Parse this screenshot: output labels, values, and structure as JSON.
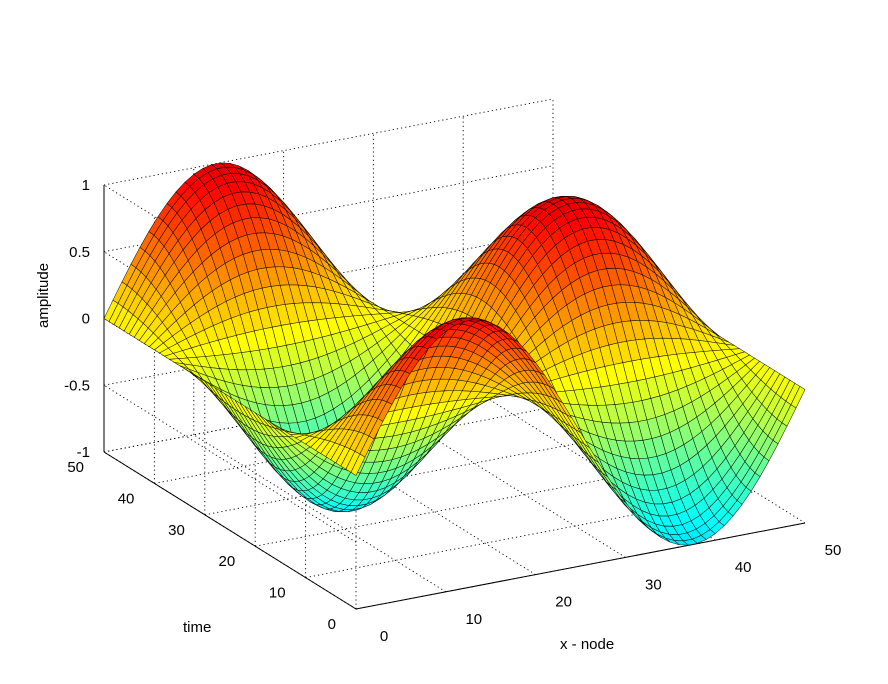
{
  "chart_data": {
    "type": "surface",
    "function": "amplitude = sin(pi*x/25) * cos(pi*t/25)",
    "x_grid": [
      0,
      1,
      2,
      3,
      4,
      5,
      6,
      7,
      8,
      9,
      10,
      11,
      12,
      13,
      14,
      15,
      16,
      17,
      18,
      19,
      20,
      21,
      22,
      23,
      24,
      25,
      26,
      27,
      28,
      29,
      30,
      31,
      32,
      33,
      34,
      35,
      36,
      37,
      38,
      39,
      40,
      41,
      42,
      43,
      44,
      45,
      46,
      47,
      48,
      49,
      50
    ],
    "t_grid": [
      0,
      1,
      2,
      3,
      4,
      5,
      6,
      7,
      8,
      9,
      10,
      11,
      12,
      13,
      14,
      15,
      16,
      17,
      18,
      19,
      20,
      21,
      22,
      23,
      24,
      25,
      26,
      27,
      28,
      29,
      30,
      31,
      32,
      33,
      34,
      35,
      36,
      37,
      38,
      39,
      40,
      41,
      42,
      43,
      44,
      45,
      46,
      47,
      48,
      49,
      50
    ],
    "sample_rows": {
      "t=0": {
        "x": [
          0,
          12.5,
          25,
          37.5,
          50
        ],
        "amplitude": [
          0,
          1,
          0,
          -1,
          0
        ]
      },
      "t=25": {
        "x": [
          0,
          12.5,
          25,
          37.5,
          50
        ],
        "amplitude": [
          0,
          -1,
          0,
          1,
          0
        ]
      },
      "t=50": {
        "x": [
          0,
          12.5,
          25,
          37.5,
          50
        ],
        "amplitude": [
          0,
          1,
          0,
          -1,
          0
        ]
      }
    },
    "xlabel": "x - node",
    "ylabel": "time",
    "zlabel": "amplitude",
    "xlim": [
      0,
      50
    ],
    "ylim": [
      0,
      50
    ],
    "zlim": [
      -1,
      1
    ],
    "xticks": [
      "0",
      "10",
      "20",
      "30",
      "40",
      "50"
    ],
    "yticks": [
      "0",
      "10",
      "20",
      "30",
      "40",
      "50"
    ],
    "zticks": [
      "-1",
      "-0.5",
      "0",
      "0.5",
      "1"
    ],
    "grid": true,
    "colormap": "jet",
    "edge_color": "#000000"
  }
}
